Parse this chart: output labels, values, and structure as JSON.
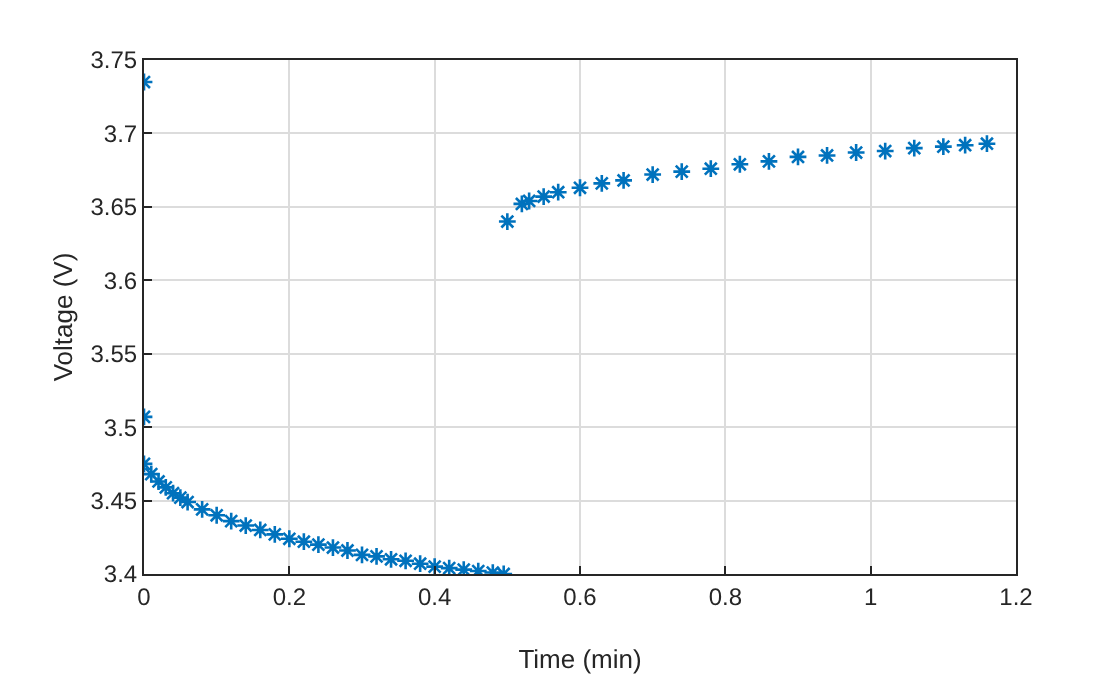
{
  "chart_data": {
    "type": "scatter",
    "xlabel": "Time (min)",
    "ylabel": "Voltage (V)",
    "marker": "cross",
    "grid": true,
    "xlim": [
      0,
      1.2
    ],
    "xticks": [
      0,
      0.2,
      0.4,
      0.6,
      0.8,
      1,
      1.2
    ],
    "ylim": [
      3.4,
      3.75
    ],
    "yticks": [
      3.4,
      3.45,
      3.5,
      3.55,
      3.6,
      3.65,
      3.7,
      3.75
    ],
    "series": [
      {
        "color": "#0072bd",
        "x": [
          0,
          0,
          0,
          0.01,
          0.02,
          0.03,
          0.04,
          0.05,
          0.06,
          0.08,
          0.1,
          0.12,
          0.14,
          0.16,
          0.18,
          0.2,
          0.22,
          0.24,
          0.26,
          0.28,
          0.3,
          0.32,
          0.34,
          0.36,
          0.38,
          0.4,
          0.42,
          0.44,
          0.46,
          0.48,
          0.495,
          0.5,
          0.52,
          0.53,
          0.55,
          0.57,
          0.6,
          0.63,
          0.66,
          0.7,
          0.74,
          0.78,
          0.82,
          0.86,
          0.9,
          0.94,
          0.98,
          1.02,
          1.06,
          1.1,
          1.13,
          1.16
        ],
        "values": [
          3.735,
          3.507,
          3.475,
          3.468,
          3.463,
          3.459,
          3.455,
          3.452,
          3.449,
          3.444,
          3.44,
          3.436,
          3.433,
          3.43,
          3.427,
          3.424,
          3.422,
          3.42,
          3.418,
          3.416,
          3.413,
          3.412,
          3.41,
          3.409,
          3.407,
          3.405,
          3.404,
          3.403,
          3.402,
          3.401,
          3.4,
          3.64,
          3.652,
          3.654,
          3.657,
          3.66,
          3.663,
          3.666,
          3.668,
          3.672,
          3.674,
          3.676,
          3.679,
          3.681,
          3.684,
          3.685,
          3.687,
          3.688,
          3.69,
          3.691,
          3.692,
          3.693
        ]
      }
    ]
  }
}
